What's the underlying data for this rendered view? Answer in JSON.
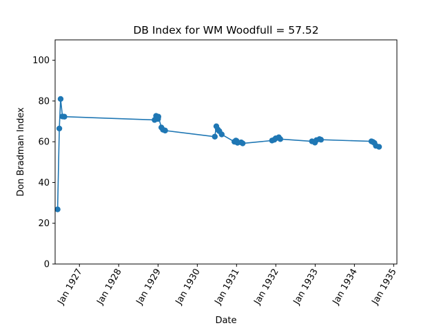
{
  "chart_data": {
    "type": "line",
    "title": "DB Index for WM Woodfull = 57.52",
    "xlabel": "Date",
    "ylabel": "Don Bradman Index",
    "xlim": [
      "1926-05-20",
      "1935-01-31"
    ],
    "ylim": [
      0,
      110
    ],
    "x_ticks": [
      {
        "date": "1927-01-01",
        "label": "Jan 1927"
      },
      {
        "date": "1928-01-01",
        "label": "Jan 1928"
      },
      {
        "date": "1929-01-01",
        "label": "Jan 1929"
      },
      {
        "date": "1930-01-01",
        "label": "Jan 1930"
      },
      {
        "date": "1931-01-01",
        "label": "Jan 1931"
      },
      {
        "date": "1932-01-01",
        "label": "Jan 1932"
      },
      {
        "date": "1933-01-01",
        "label": "Jan 1933"
      },
      {
        "date": "1934-01-01",
        "label": "Jan 1934"
      },
      {
        "date": "1935-01-01",
        "label": "Jan 1935"
      }
    ],
    "y_ticks": [
      {
        "value": 0,
        "label": "0"
      },
      {
        "value": 20,
        "label": "20"
      },
      {
        "value": 40,
        "label": "40"
      },
      {
        "value": 60,
        "label": "60"
      },
      {
        "value": 80,
        "label": "80"
      },
      {
        "value": 100,
        "label": "100"
      }
    ],
    "grid": false,
    "color": "#1f77b4",
    "marker": "circle",
    "series": [
      {
        "x": [
          "1926-06-12",
          "1926-06-28",
          "1926-07-10",
          "1926-07-27",
          "1926-08-14",
          "1928-11-30",
          "1928-12-14",
          "1928-12-29",
          "1929-01-01",
          "1929-01-04",
          "1929-02-01",
          "1929-02-16",
          "1929-03-08",
          "1930-06-13",
          "1930-06-27",
          "1930-07-11",
          "1930-07-25",
          "1930-08-16",
          "1930-12-12",
          "1930-12-26",
          "1931-01-01",
          "1931-01-10",
          "1931-02-13",
          "1931-02-27",
          "1931-11-27",
          "1931-12-18",
          "1932-01-01",
          "1932-01-29",
          "1932-02-12",
          "1932-12-02",
          "1932-12-30",
          "1933-01-13",
          "1933-02-10",
          "1933-02-24",
          "1934-06-08",
          "1934-06-22",
          "1934-07-06",
          "1934-07-20",
          "1934-08-18"
        ],
        "values": [
          26.8,
          66.5,
          81.0,
          72.4,
          72.3,
          70.7,
          72.7,
          72.0,
          71.2,
          72.3,
          67.0,
          65.9,
          65.5,
          62.5,
          67.6,
          66.0,
          65.2,
          63.6,
          60.0,
          60.6,
          60.4,
          59.5,
          59.7,
          59.2,
          60.6,
          61.0,
          61.7,
          62.2,
          61.3,
          60.2,
          59.6,
          60.8,
          61.3,
          61.0,
          60.2,
          59.9,
          59.4,
          58.0,
          57.5
        ]
      }
    ]
  }
}
